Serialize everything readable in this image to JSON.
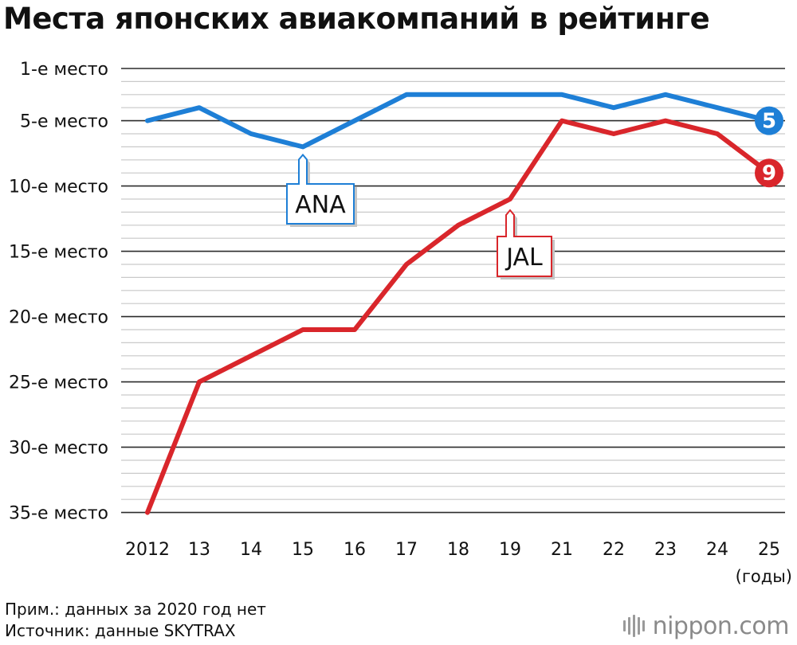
{
  "title": "Места японских авиакомпаний в рейтинге",
  "notes": [
    "Прим.: данных за 2020 год нет",
    "Источник: данные SKYTRAX"
  ],
  "logo": {
    "text": "nippon.com"
  },
  "chart_data": {
    "type": "line",
    "title": "Места японских авиакомпаний в рейтинге",
    "x": [
      "2012",
      "13",
      "14",
      "15",
      "16",
      "17",
      "18",
      "19",
      "21",
      "22",
      "23",
      "24",
      "25"
    ],
    "xunit": "(годы)",
    "y_tick_labels": [
      "1-е место",
      "5-е место",
      "10-е место",
      "15-е место",
      "20-е место",
      "25-е место",
      "30-е место",
      "35-е место"
    ],
    "y_tick_values": [
      1,
      5,
      10,
      15,
      20,
      25,
      30,
      35
    ],
    "ylim": [
      1,
      35
    ],
    "y_inverted": true,
    "grid": true,
    "series": [
      {
        "name": "ANA",
        "color": "#1e7fd6",
        "values": [
          5,
          4,
          6,
          7,
          5,
          3,
          3,
          3,
          3,
          4,
          3,
          4,
          5
        ],
        "end_label": "5"
      },
      {
        "name": "JAL",
        "color": "#d9262b",
        "values": [
          35,
          25,
          23,
          21,
          21,
          16,
          13,
          11,
          5,
          6,
          5,
          6,
          9
        ],
        "end_label": "9"
      }
    ]
  }
}
